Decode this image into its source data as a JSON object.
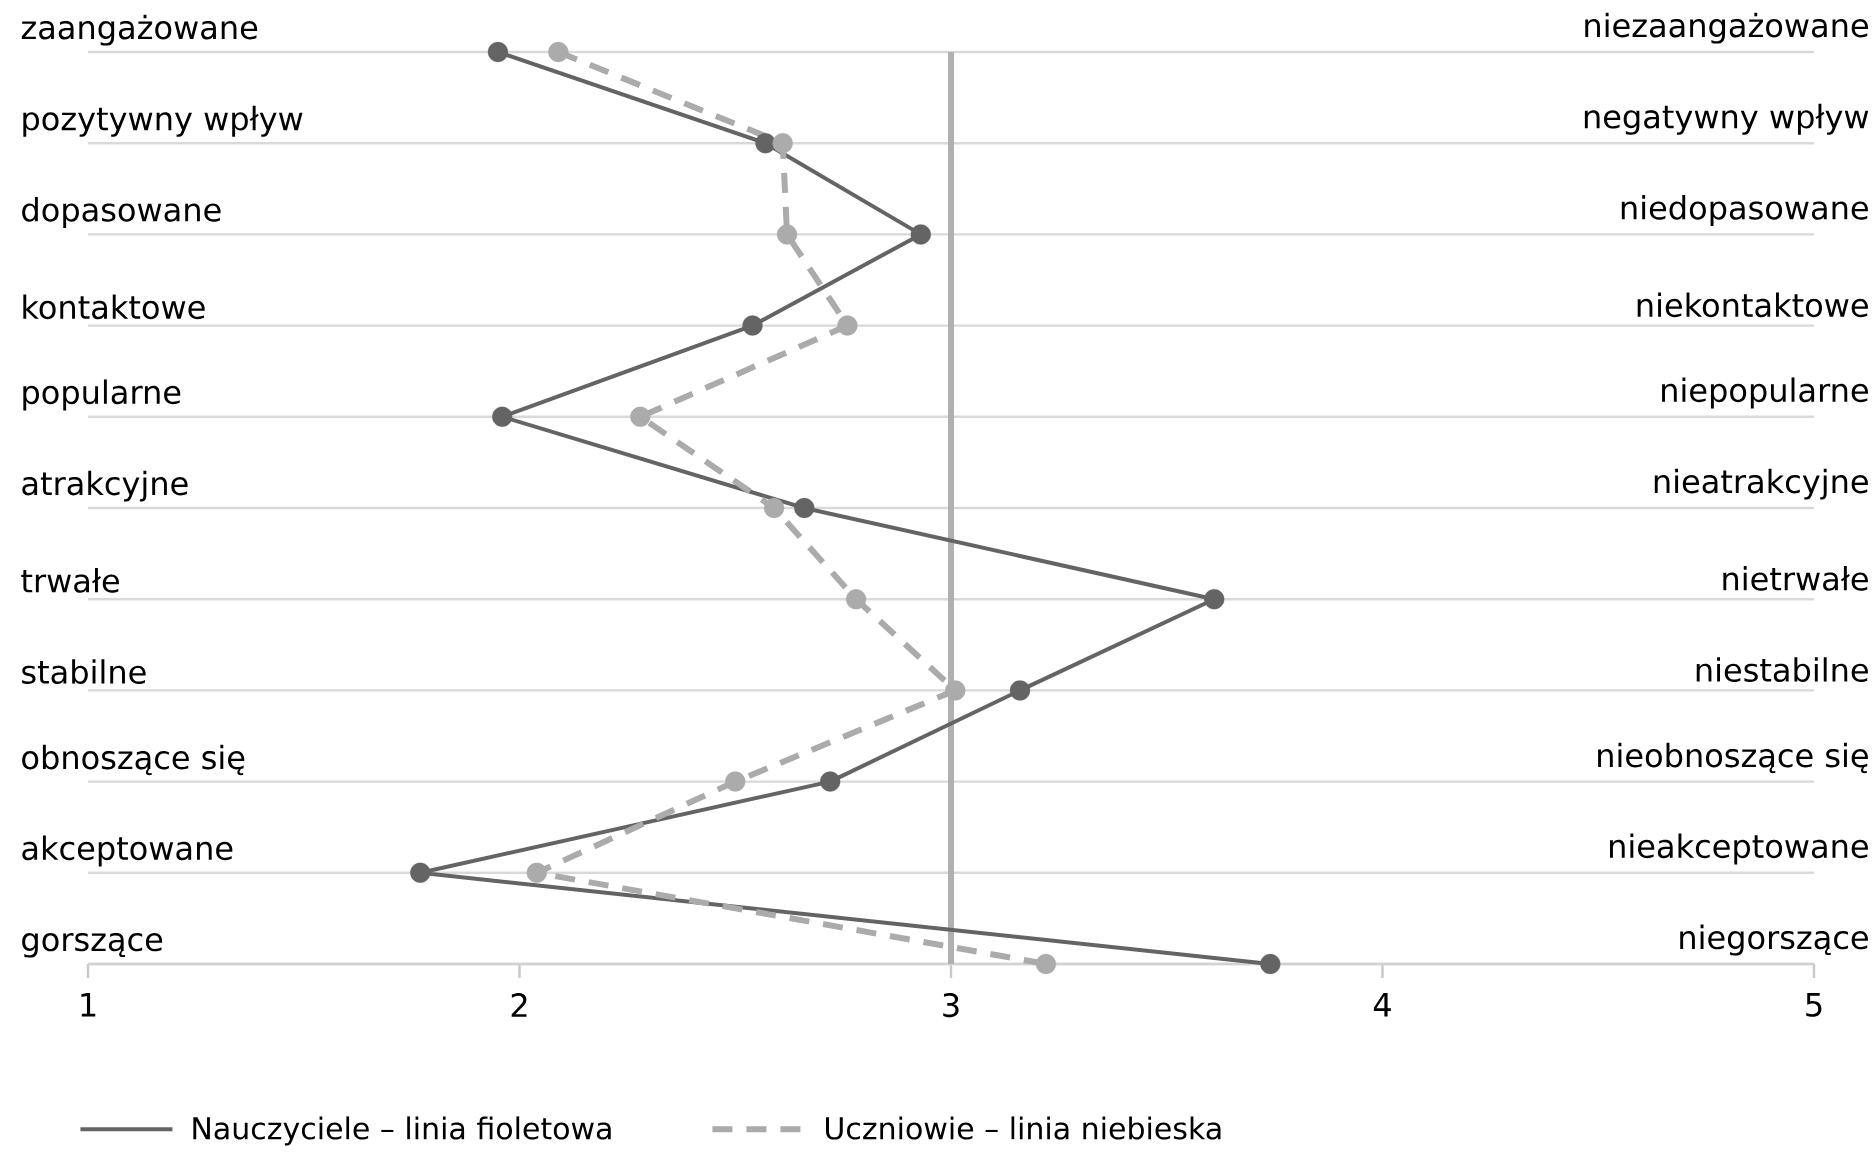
{
  "chart_data": {
    "type": "line",
    "orientation": "horizontal",
    "categories": [
      "zaangażowane",
      "pozytywny wpływ",
      "dopasowane",
      "kontaktowe",
      "popularne",
      "atrakcyjne",
      "trwałe",
      "stabilne",
      "obnoszące się",
      "akceptowane",
      "gorszące"
    ],
    "annotations": [
      "niezaangażowane",
      "negatywny wpływ",
      "niedopasowane",
      "niekontaktowe",
      "niepopularne",
      "nieatrakcyjne",
      "nietrwałe",
      "niestabilne",
      "nieobnoszące się",
      "nieakceptowane",
      "niegorszące"
    ],
    "series": [
      {
        "name": "Nauczyciele – linia fioletowa",
        "color": "#646464",
        "line_style": "solid",
        "values": [
          1.95,
          2.57,
          2.93,
          2.54,
          1.96,
          2.66,
          3.61,
          3.16,
          2.72,
          1.77,
          3.74
        ]
      },
      {
        "name": "Uczniowie – linia niebieska",
        "color": "#ababab",
        "line_style": "dashed",
        "values": [
          2.09,
          2.61,
          2.62,
          2.76,
          2.28,
          2.59,
          2.78,
          3.01,
          2.5,
          2.04,
          3.22
        ]
      }
    ],
    "xlim": [
      1,
      5
    ],
    "xticks": [
      1,
      2,
      3,
      4,
      5
    ],
    "ref_lines": [
      {
        "axis": "x",
        "value": 3,
        "color": "#b0b0b0"
      }
    ],
    "grid": "y",
    "legend": "bottom",
    "marker": "circle"
  }
}
